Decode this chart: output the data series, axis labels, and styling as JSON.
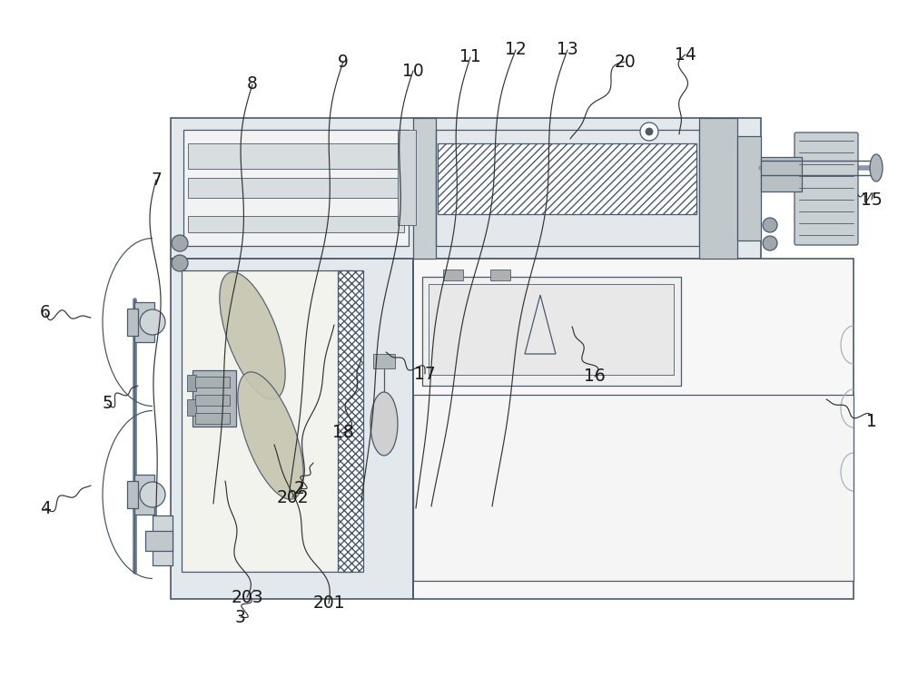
{
  "bg_color": "#ffffff",
  "line_color": "#4a5a6a",
  "speckle_color": "#e2e8ec",
  "label_color": "#1a1a1a",
  "leader_color": "#333333",
  "fig_w": 10.0,
  "fig_h": 7.46,
  "dpi": 100,
  "labels_info": [
    [
      "1",
      960,
      465,
      910,
      440
    ],
    [
      "2",
      330,
      538,
      345,
      510
    ],
    [
      "3",
      265,
      680,
      280,
      650
    ],
    [
      "4",
      50,
      560,
      100,
      535
    ],
    [
      "5",
      118,
      445,
      152,
      425
    ],
    [
      "6",
      50,
      345,
      100,
      350
    ],
    [
      "7",
      172,
      198,
      172,
      568
    ],
    [
      "8",
      278,
      93,
      235,
      555
    ],
    [
      "9",
      378,
      68,
      318,
      548
    ],
    [
      "10",
      455,
      78,
      398,
      553
    ],
    [
      "11",
      518,
      63,
      458,
      560
    ],
    [
      "12",
      568,
      55,
      475,
      558
    ],
    [
      "13",
      625,
      55,
      542,
      558
    ],
    [
      "14",
      755,
      60,
      748,
      148
    ],
    [
      "15",
      960,
      220,
      945,
      215
    ],
    [
      "16",
      655,
      415,
      630,
      360
    ],
    [
      "17",
      468,
      412,
      425,
      388
    ],
    [
      "18",
      378,
      477,
      398,
      395
    ],
    [
      "20",
      688,
      68,
      628,
      153
    ],
    [
      "201",
      362,
      665,
      302,
      490
    ],
    [
      "202",
      322,
      548,
      368,
      358
    ],
    [
      "203",
      272,
      658,
      248,
      530
    ]
  ]
}
